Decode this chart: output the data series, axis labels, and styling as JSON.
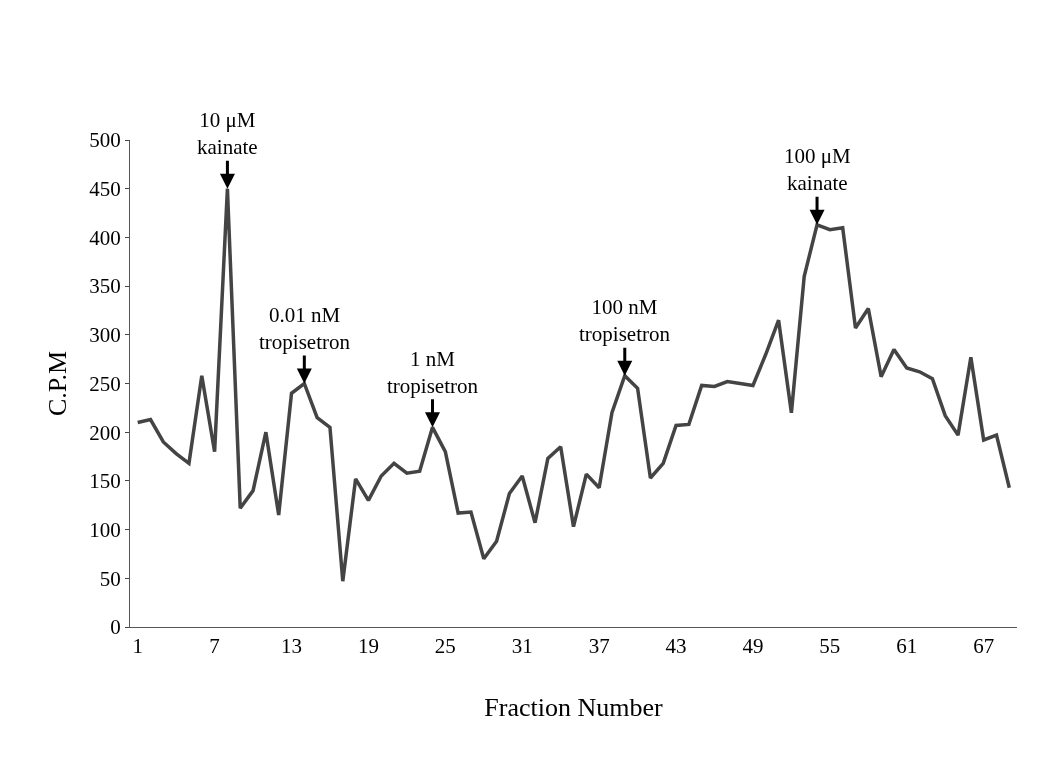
{
  "chart_data": {
    "type": "line",
    "xlabel": "Fraction Number",
    "ylabel": "C.P.M",
    "x": [
      1,
      2,
      3,
      4,
      5,
      6,
      7,
      8,
      9,
      10,
      11,
      12,
      13,
      14,
      15,
      16,
      17,
      18,
      19,
      20,
      21,
      22,
      23,
      24,
      25,
      26,
      27,
      28,
      29,
      30,
      31,
      32,
      33,
      34,
      35,
      36,
      37,
      38,
      39,
      40,
      41,
      42,
      43,
      44,
      45,
      46,
      47,
      48,
      49,
      50,
      51,
      52,
      53,
      54,
      55,
      56,
      57,
      58,
      59,
      60,
      61,
      62,
      63,
      64,
      65,
      66,
      67,
      68,
      69
    ],
    "series": [
      {
        "color": "#444444",
        "values": [
          210,
          213,
          190,
          178,
          168,
          258,
          180,
          450,
          122,
          140,
          200,
          115,
          240,
          250,
          215,
          205,
          47,
          152,
          130,
          155,
          168,
          158,
          160,
          205,
          180,
          117,
          118,
          70,
          88,
          137,
          155,
          107,
          173,
          185,
          103,
          157,
          143,
          220,
          258,
          245,
          153,
          168,
          207,
          208,
          248,
          247,
          252,
          250,
          248,
          280,
          315,
          220,
          360,
          413,
          408,
          410,
          307,
          327,
          257,
          285,
          266,
          262,
          255,
          217,
          197,
          277,
          192,
          197,
          143
        ]
      }
    ],
    "xlim": [
      0.4,
      69.6
    ],
    "xticks": [
      1,
      7,
      13,
      19,
      25,
      31,
      37,
      43,
      49,
      55,
      61,
      67
    ],
    "ylim": [
      0,
      500
    ],
    "yticks": [
      0,
      50,
      100,
      150,
      200,
      250,
      300,
      350,
      400,
      450,
      500
    ],
    "marker": "none",
    "line_style": "solid",
    "annotations": [
      {
        "text": "10 μM\nkainate",
        "x": 8,
        "y": 450
      },
      {
        "text": "0.01 nM\ntropisetron",
        "x": 14,
        "y": 250
      },
      {
        "text": "1 nM\ntropisetron",
        "x": 24,
        "y": 205
      },
      {
        "text": "100 nM\ntropisetron",
        "x": 39,
        "y": 258
      },
      {
        "text": "100 μM\nkainate",
        "x": 54,
        "y": 413
      }
    ]
  }
}
